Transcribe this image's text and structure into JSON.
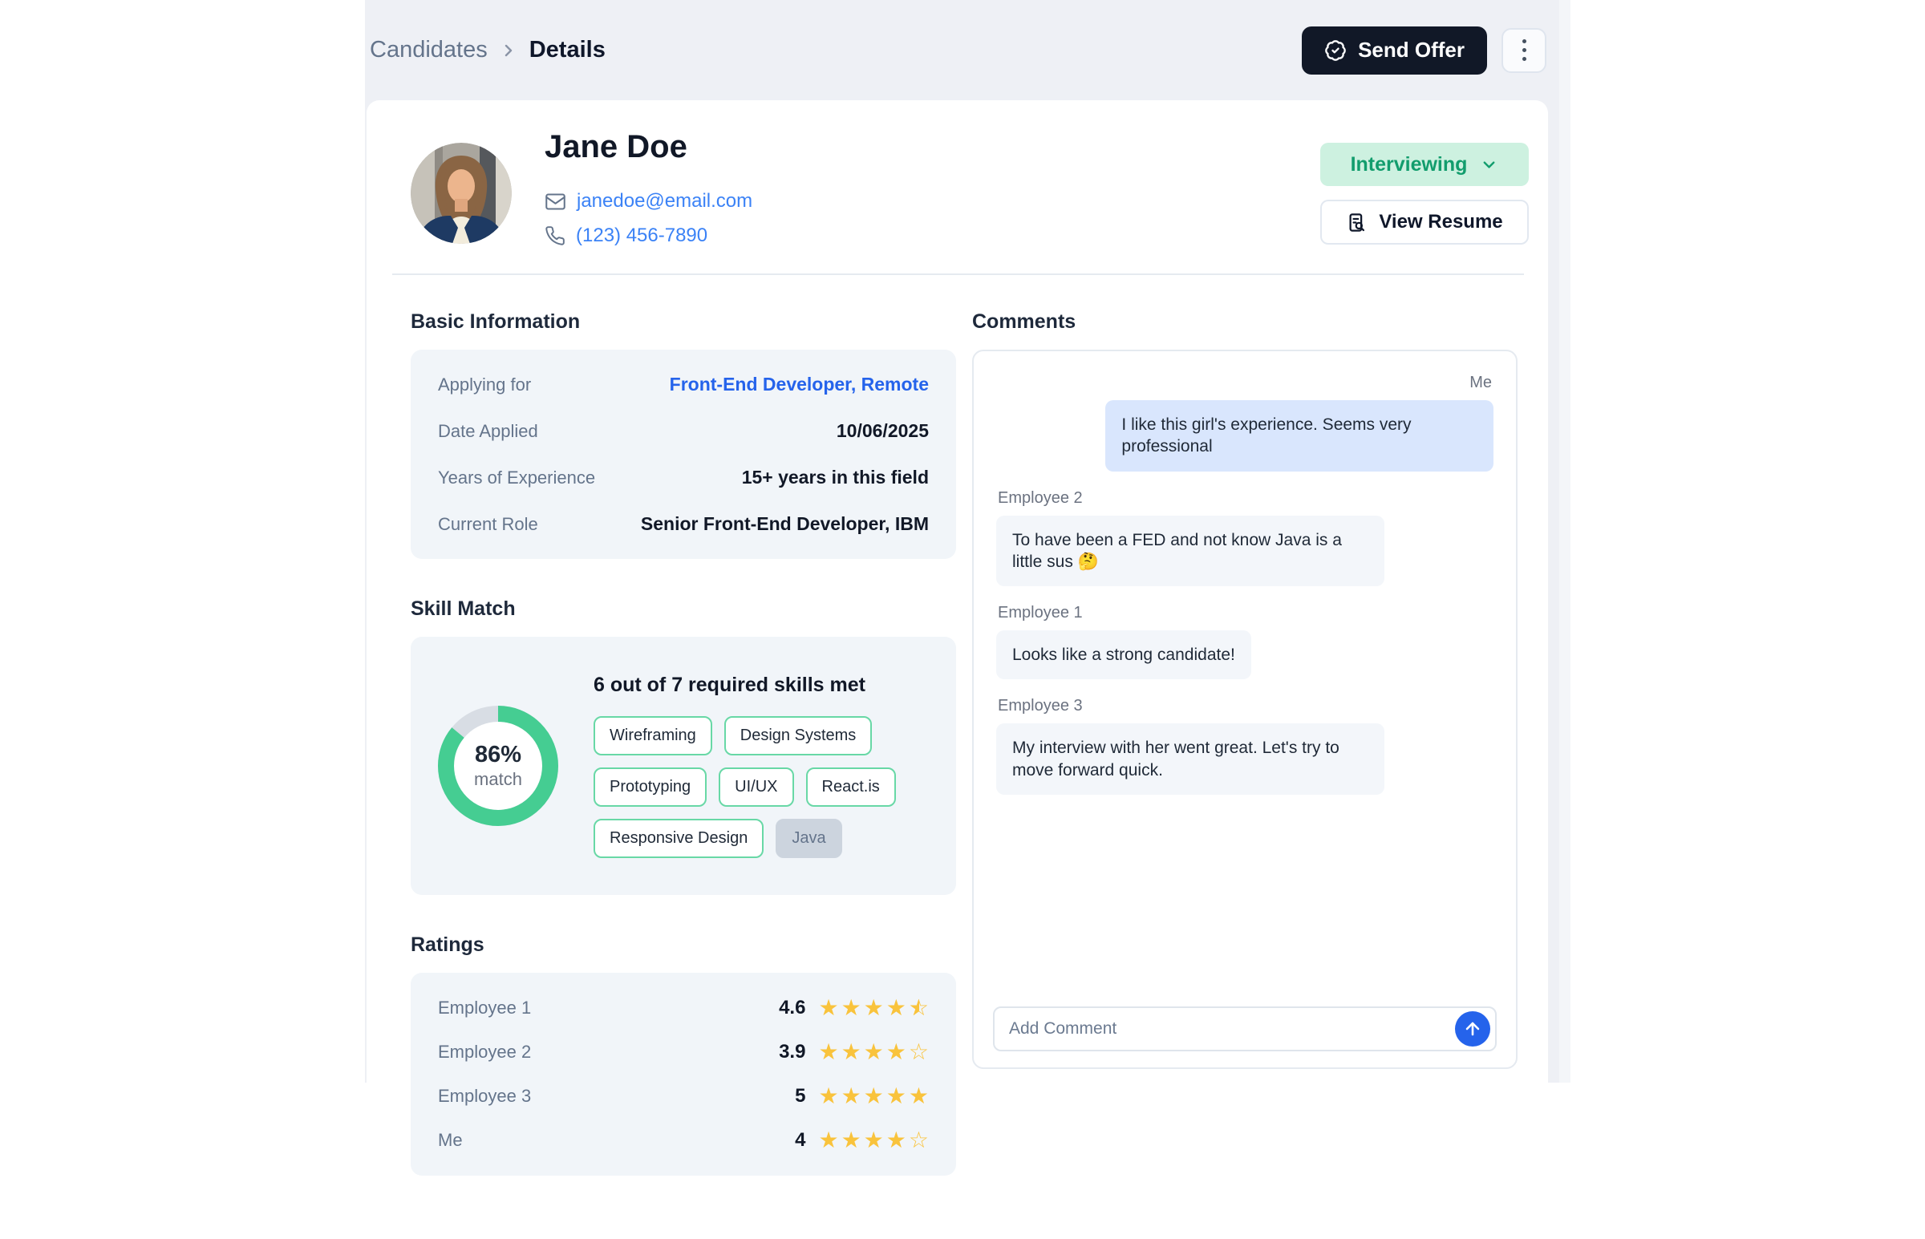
{
  "breadcrumb": {
    "items": [
      "Candidates",
      "Details"
    ]
  },
  "header": {
    "send_offer_label": "Send Offer"
  },
  "profile": {
    "name": "Jane Doe",
    "email": "janedoe@email.com",
    "phone": "(123) 456-7890",
    "status": "Interviewing",
    "view_resume_label": "View Resume"
  },
  "basic_info": {
    "title": "Basic Information",
    "rows": [
      {
        "label": "Applying for",
        "value": "Front-End Developer, Remote",
        "link": true
      },
      {
        "label": "Date Applied",
        "value": "10/06/2025",
        "link": false
      },
      {
        "label": "Years of Experience",
        "value": "15+ years in this field",
        "link": false
      },
      {
        "label": "Current Role",
        "value": "Senior Front-End Developer, IBM",
        "link": false
      }
    ]
  },
  "skill_match": {
    "title": "Skill Match",
    "percent": 86,
    "percent_label": "86%",
    "match_label": "match",
    "headline": "6 out of 7 required skills met",
    "skills_met": [
      "Wireframing",
      "Design Systems",
      "Prototyping",
      "UI/UX",
      "React.is",
      "Responsive Design"
    ],
    "skills_missing": [
      "Java"
    ],
    "donut_color": "#45cd92",
    "track_color": "#d8dde4"
  },
  "ratings": {
    "title": "Ratings",
    "rows": [
      {
        "name": "Employee 1",
        "value": 4.6,
        "display": "4.6"
      },
      {
        "name": "Employee 2",
        "value": 3.9,
        "display": "3.9"
      },
      {
        "name": "Employee 3",
        "value": 5,
        "display": "5"
      },
      {
        "name": "Me",
        "value": 4,
        "display": "4"
      }
    ]
  },
  "comments": {
    "title": "Comments",
    "messages": [
      {
        "author": "Me",
        "side": "right",
        "text": "I like this girl's experience. Seems very professional"
      },
      {
        "author": "Employee 2",
        "side": "left",
        "text": "To have been a FED and not know Java is a little sus 🤔"
      },
      {
        "author": "Employee 1",
        "side": "left",
        "text": "Looks like a strong candidate!"
      },
      {
        "author": "Employee 3",
        "side": "left",
        "text": "My interview with her went great. Let's try to move forward quick."
      }
    ],
    "input_placeholder": "Add Comment"
  },
  "colors": {
    "panel_bg": "#eef0f5",
    "accent_green": "#129d6d",
    "pill_bg": "#cdf1e0",
    "link_blue": "#3b82f6",
    "star_amber": "#f9c33c",
    "send_offer_bg": "#111827",
    "me_bubble": "#d9e6fd",
    "other_bubble": "#f3f6fa",
    "send_button_blue": "#2563eb"
  }
}
